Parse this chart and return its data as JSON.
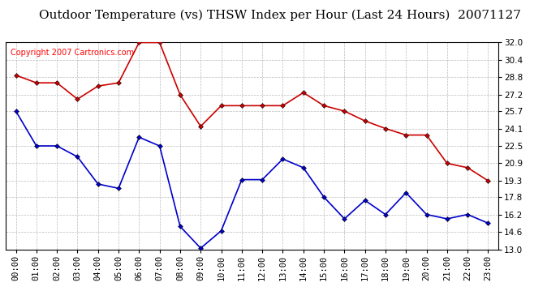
{
  "title": "Outdoor Temperature (vs) THSW Index per Hour (Last 24 Hours)  20071127",
  "copyright_text": "Copyright 2007 Cartronics.com",
  "hours": [
    "00:00",
    "01:00",
    "02:00",
    "03:00",
    "04:00",
    "05:00",
    "06:00",
    "07:00",
    "08:00",
    "09:00",
    "10:00",
    "11:00",
    "12:00",
    "13:00",
    "14:00",
    "15:00",
    "16:00",
    "17:00",
    "18:00",
    "19:00",
    "20:00",
    "21:00",
    "22:00",
    "23:00"
  ],
  "thsw": [
    29.0,
    28.3,
    28.3,
    26.8,
    28.0,
    28.3,
    32.0,
    32.0,
    27.2,
    24.3,
    26.2,
    26.2,
    26.2,
    26.2,
    27.4,
    26.2,
    25.7,
    24.8,
    24.1,
    23.5,
    23.5,
    20.9,
    20.5,
    19.3
  ],
  "temp": [
    25.7,
    22.5,
    22.5,
    21.5,
    19.0,
    18.6,
    23.3,
    22.5,
    15.1,
    13.1,
    14.7,
    19.4,
    19.4,
    21.3,
    20.5,
    17.8,
    15.8,
    17.5,
    16.2,
    18.2,
    16.2,
    15.8,
    16.2,
    15.4
  ],
  "thsw_color": "#cc0000",
  "temp_color": "#0000cc",
  "marker": "D",
  "marker_size": 3,
  "ymin": 13.0,
  "ymax": 32.0,
  "yticks": [
    13.0,
    14.6,
    16.2,
    17.8,
    19.3,
    20.9,
    22.5,
    24.1,
    25.7,
    27.2,
    28.8,
    30.4,
    32.0
  ],
  "background_color": "#ffffff",
  "plot_bg_color": "#ffffff",
  "grid_color": "#aaaaaa",
  "title_fontsize": 11,
  "tick_fontsize": 7.5,
  "copyright_fontsize": 7
}
